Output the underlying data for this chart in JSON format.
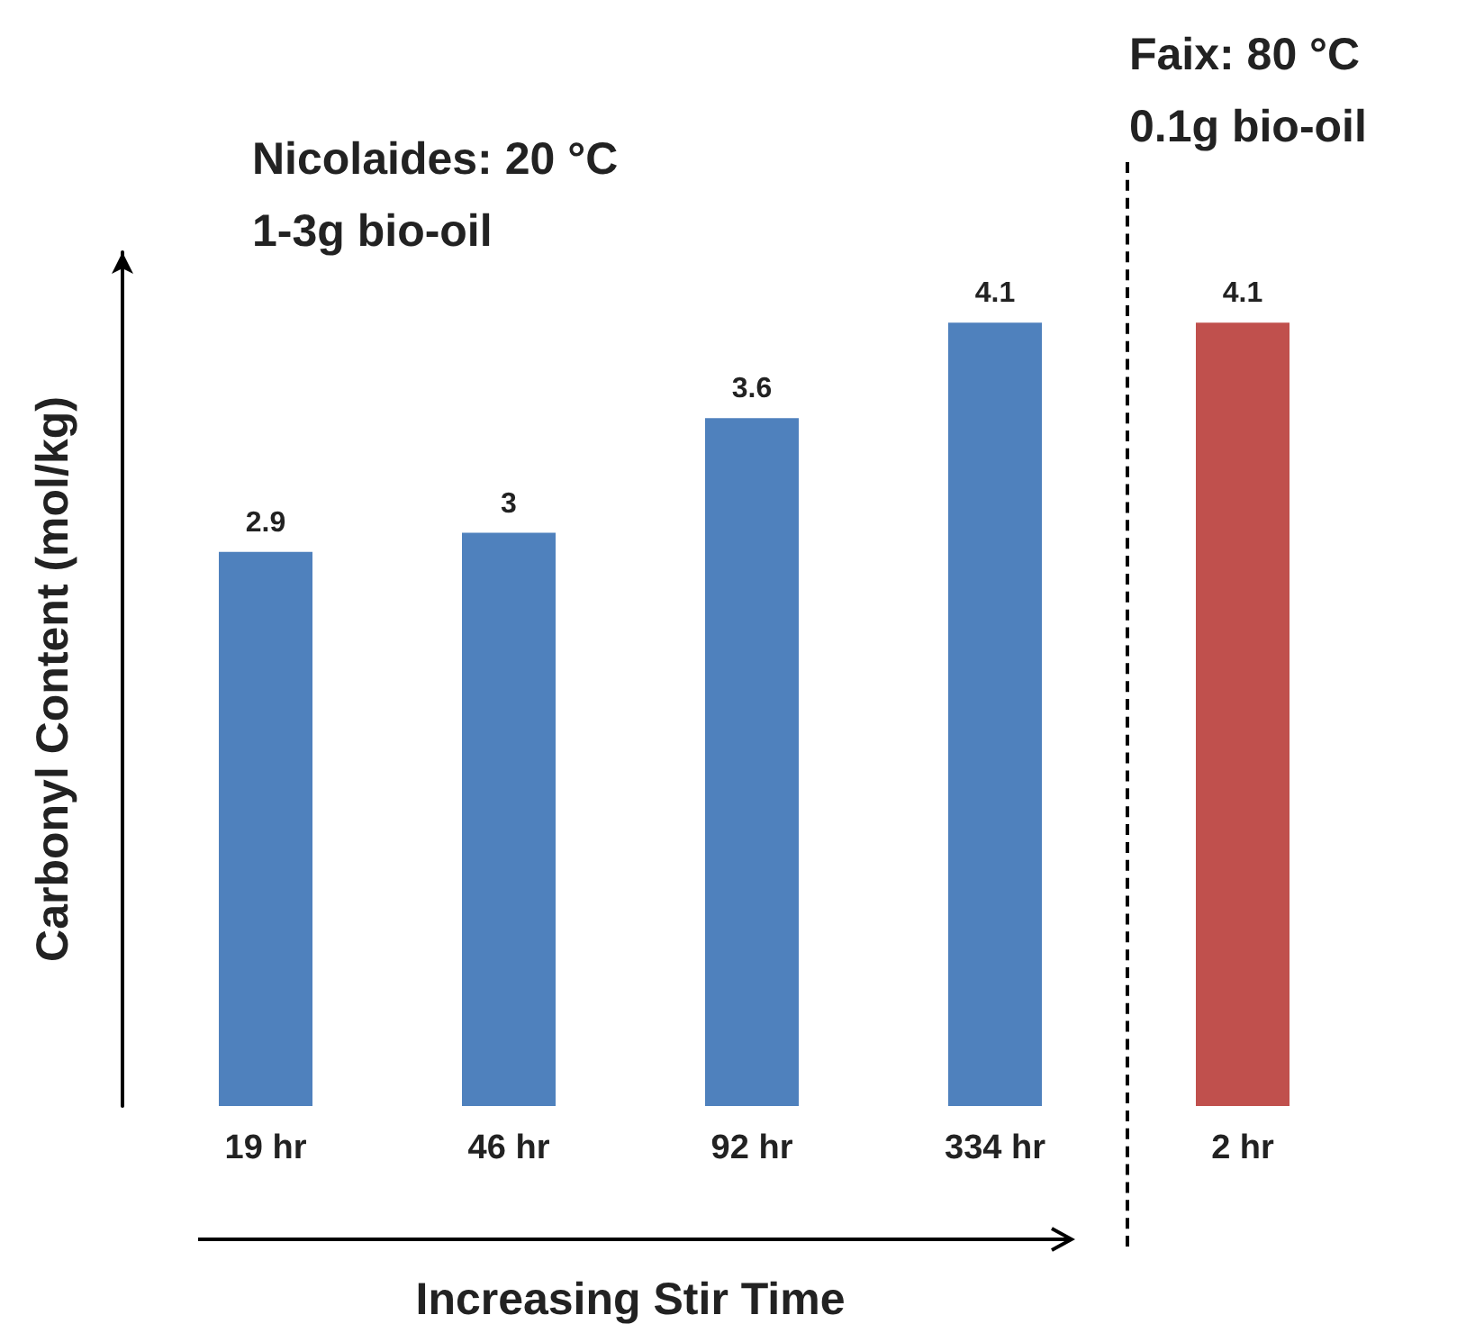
{
  "chart_data": [
    {
      "type": "bar",
      "ylabel": "Carbonyl Content (mol/kg)",
      "xlabel": "Increasing Stir Time",
      "annotations": [
        "Nicolaides: 20 °C",
        "1-3g bio-oil"
      ],
      "categories": [
        "19 hr",
        "46 hr",
        "92 hr",
        "334 hr"
      ],
      "values": [
        2.9,
        3,
        3.6,
        4.1
      ],
      "color": "#4f81bd",
      "data_labels": true,
      "tick_labels": "x"
    },
    {
      "type": "bar",
      "annotations": [
        "Faix: 80 °C",
        "0.1g bio-oil"
      ],
      "categories": [
        "2 hr"
      ],
      "values": [
        4.1
      ],
      "color": "#c0504d",
      "data_labels": true,
      "tick_labels": "x"
    }
  ]
}
